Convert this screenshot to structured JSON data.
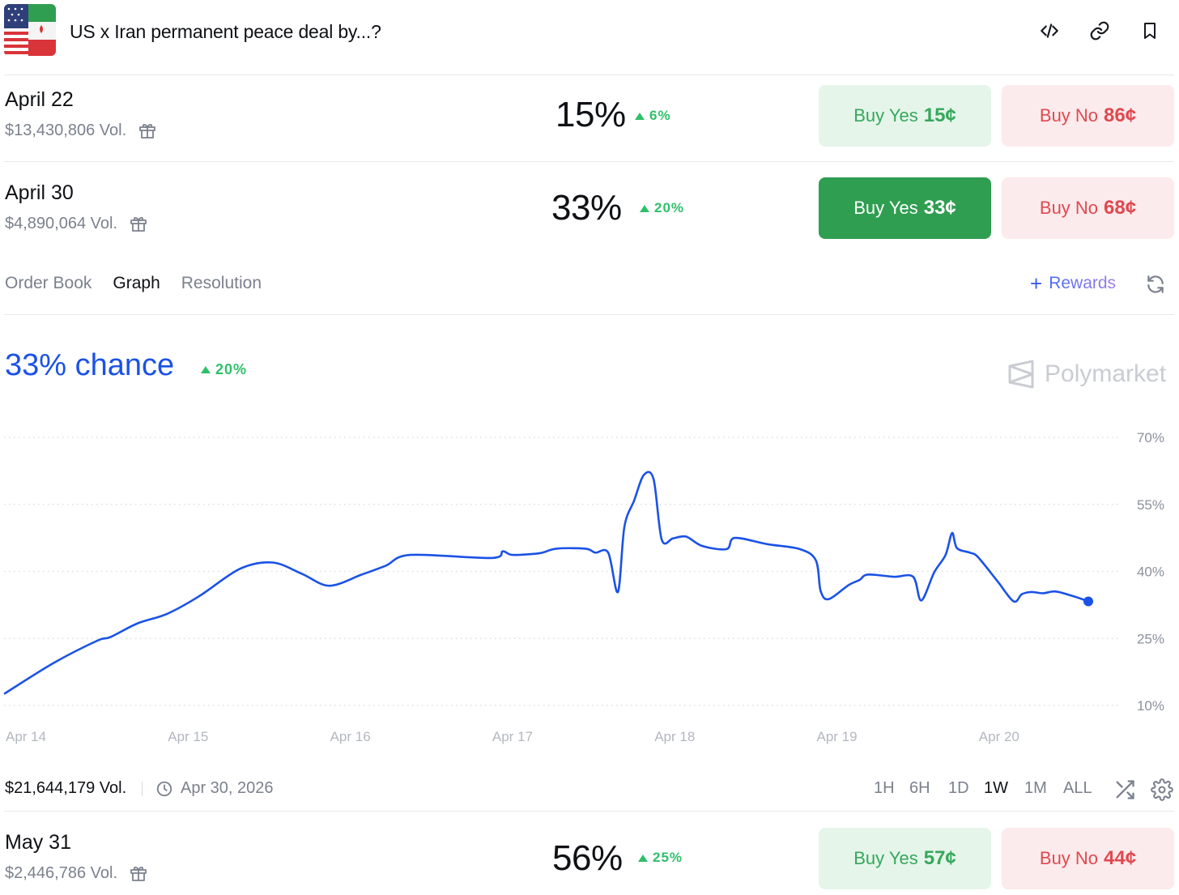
{
  "header": {
    "title": "US x Iran permanent peace deal by...?"
  },
  "markets": [
    {
      "date": "April 22",
      "volume": "$13,430,806 Vol.",
      "percent": "15%",
      "change": "6%",
      "yes_label": "Buy Yes",
      "yes_price": "15¢",
      "no_label": "Buy No",
      "no_price": "86¢"
    },
    {
      "date": "April 30",
      "volume": "$4,890,064 Vol.",
      "percent": "33%",
      "change": "20%",
      "yes_label": "Buy Yes",
      "yes_price": "33¢",
      "no_label": "Buy No",
      "no_price": "68¢"
    },
    {
      "date": "May 31",
      "volume": "$2,446,786 Vol.",
      "percent": "56%",
      "change": "25%",
      "yes_label": "Buy Yes",
      "yes_price": "57¢",
      "no_label": "Buy No",
      "no_price": "44¢"
    }
  ],
  "tabs": [
    "Order Book",
    "Graph",
    "Resolution"
  ],
  "active_tab": "Graph",
  "rewards_label": "Rewards",
  "chance": {
    "text": "33% chance",
    "change": "20%"
  },
  "brand": "Polymarket",
  "footer": {
    "volume": "$21,644,179 Vol.",
    "end_date": "Apr 30, 2026",
    "ranges": [
      "1H",
      "6H",
      "1D",
      "1W",
      "1M",
      "ALL"
    ],
    "active_range": "1W"
  },
  "colors": {
    "line": "#1b52e6",
    "positive": "#2fbf6a",
    "yes": "#2f9e50",
    "no": "#e0494f"
  },
  "chart_data": {
    "type": "line",
    "x_ticks": [
      "Apr 14",
      "Apr 15",
      "Apr 16",
      "Apr 17",
      "Apr 18",
      "Apr 19",
      "Apr 20"
    ],
    "y_ticks": [
      "70%",
      "55%",
      "40%",
      "25%",
      "10%"
    ],
    "ylim": [
      10,
      70
    ],
    "grid": true,
    "series": [
      {
        "values": [
          [
            14.0,
            12.7
          ],
          [
            14.3,
            19.5
          ],
          [
            14.57,
            24.5
          ],
          [
            14.65,
            25.3
          ],
          [
            14.82,
            28.4
          ],
          [
            15.0,
            30.5
          ],
          [
            15.2,
            34.5
          ],
          [
            15.45,
            40.6
          ],
          [
            15.65,
            42.0
          ],
          [
            15.83,
            39.5
          ],
          [
            16.0,
            36.8
          ],
          [
            16.2,
            39.3
          ],
          [
            16.35,
            41.3
          ],
          [
            16.5,
            43.7
          ],
          [
            17.0,
            43.0
          ],
          [
            17.07,
            44.5
          ],
          [
            17.13,
            43.7
          ],
          [
            17.3,
            44.1
          ],
          [
            17.4,
            45.1
          ],
          [
            17.58,
            45.1
          ],
          [
            17.64,
            44.2
          ],
          [
            17.72,
            44.2
          ],
          [
            17.78,
            35.4
          ],
          [
            17.82,
            50.0
          ],
          [
            17.88,
            55.9
          ],
          [
            17.94,
            61.6
          ],
          [
            18.0,
            60.6
          ],
          [
            18.05,
            47.1
          ],
          [
            18.12,
            47.4
          ],
          [
            18.2,
            47.8
          ],
          [
            18.3,
            45.7
          ],
          [
            18.45,
            45.0
          ],
          [
            18.5,
            47.5
          ],
          [
            18.7,
            46.1
          ],
          [
            18.9,
            45.0
          ],
          [
            19.0,
            42.5
          ],
          [
            19.03,
            35.6
          ],
          [
            19.08,
            33.8
          ],
          [
            19.2,
            36.9
          ],
          [
            19.27,
            38.1
          ],
          [
            19.32,
            39.3
          ],
          [
            19.48,
            38.8
          ],
          [
            19.6,
            38.8
          ],
          [
            19.65,
            33.5
          ],
          [
            19.73,
            39.8
          ],
          [
            19.8,
            43.7
          ],
          [
            19.84,
            48.6
          ],
          [
            19.87,
            45.2
          ],
          [
            19.95,
            44.2
          ],
          [
            20.0,
            43.2
          ],
          [
            20.12,
            37.8
          ],
          [
            20.22,
            33.3
          ],
          [
            20.27,
            34.9
          ],
          [
            20.33,
            35.4
          ],
          [
            20.4,
            35.1
          ],
          [
            20.48,
            35.5
          ],
          [
            20.6,
            34.3
          ],
          [
            20.68,
            33.3
          ]
        ]
      }
    ]
  }
}
